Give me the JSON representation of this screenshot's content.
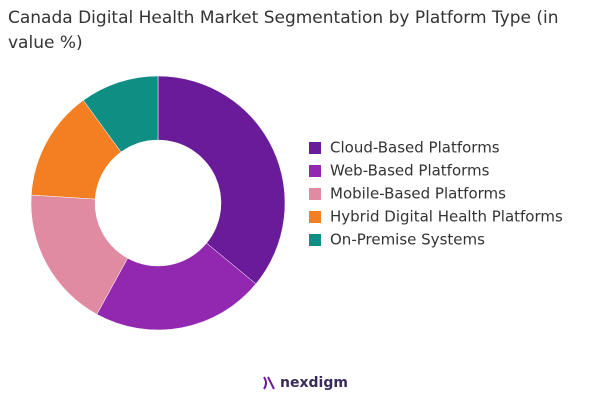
{
  "chart_data": {
    "type": "donut",
    "title": "Canada Digital Health Market Segmentation by Platform Type (in value %)",
    "categories": [
      "Cloud-Based Platforms",
      "Web-Based Platforms",
      "Mobile-Based Platforms",
      "Hybrid Digital Health Platforms",
      "On-Premise Systems"
    ],
    "values": [
      36,
      22,
      18,
      14,
      10
    ],
    "colors": [
      "#6a1b9a",
      "#9227b0",
      "#e08ba1",
      "#f47f22",
      "#0f8f84"
    ],
    "legend": "right"
  },
  "logo": "nexdigm"
}
